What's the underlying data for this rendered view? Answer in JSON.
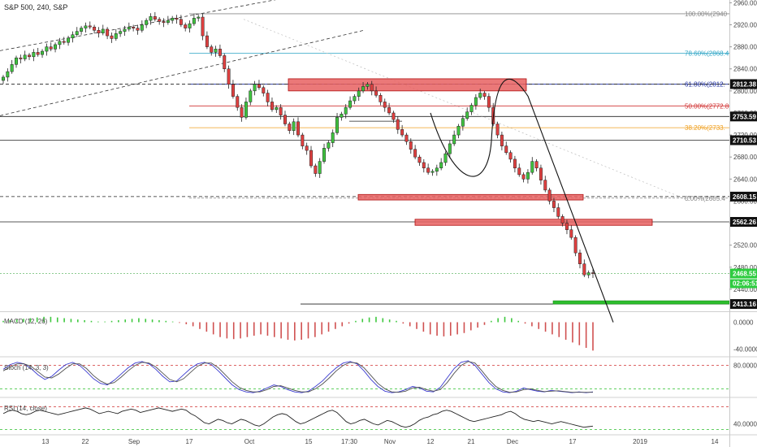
{
  "header": {
    "title": "S&P 500, 240, S&P"
  },
  "colors": {
    "up": "#3fc43f",
    "down": "#e04040",
    "zone_fill": "#e86060",
    "zone_stroke": "#b01010",
    "fib_100": "#8a8a8a",
    "fib_786": "#2aa3c4",
    "fib_618": "#2030a0",
    "fib_50": "#d03030",
    "fib_382": "#f0a020",
    "fib_0": "#8a8a8a",
    "macd_pos": "#3ec83e",
    "macd_neg": "#d05050",
    "stoch_k": "#3a3ad0",
    "stoch_d": "#505050",
    "band_red": "#d03030",
    "band_green": "#2cbf2c",
    "last_price_bg": "#2ecc40"
  },
  "chart_data": [
    {
      "type": "candlestick",
      "pane": "price",
      "ylim": [
        2400,
        2965
      ],
      "price_ticks": [
        2960,
        2920,
        2880,
        2840,
        2800,
        2760,
        2720,
        2680,
        2640,
        2600,
        2560,
        2520,
        2480,
        2440
      ],
      "price_tick_labels": [
        "2960.00",
        "2920.00",
        "2880.00",
        "2840.00",
        "2800.00",
        "2760.00",
        "2720.00",
        "2680.00",
        "2640.00",
        "2600.00",
        "2560.00",
        "2520.00",
        "2480.00",
        "2440.00"
      ],
      "date_labels": [
        "13",
        "22",
        "Sep",
        "17",
        "Oct",
        "15",
        "17:30",
        "Nov",
        "12",
        "21",
        "Dec",
        "17",
        "2019",
        "14"
      ],
      "fib_levels": [
        {
          "label": "100.00%(2940",
          "value": 2940.0,
          "color_key": "fib_100"
        },
        {
          "label": "78.60%(2868.4",
          "value": 2868.4,
          "color_key": "fib_786"
        },
        {
          "label": "61.80%(2812.",
          "value": 2812.4,
          "color_key": "fib_618"
        },
        {
          "label": "50.00%(2772.8",
          "value": 2772.8,
          "color_key": "fib_50"
        },
        {
          "label": "38.20%(2733.",
          "value": 2733.2,
          "color_key": "fib_382"
        },
        {
          "label": "0.00%(2605.4",
          "value": 2605.4,
          "color_key": "fib_0"
        }
      ],
      "horizontal_levels": [
        2812.38,
        2753.59,
        2710.53,
        2608.15,
        2562.26,
        2413.16
      ],
      "price_badges": [
        "2812.38",
        "2753.59",
        "2710.53",
        "2608.15",
        "2562.26",
        "2413.16"
      ],
      "last_price": {
        "value": 2468.55,
        "label": "2468.55",
        "countdown": "02:06:51"
      },
      "closes": [
        2825,
        2835,
        2848,
        2860,
        2858,
        2865,
        2862,
        2870,
        2866,
        2872,
        2880,
        2876,
        2884,
        2890,
        2888,
        2896,
        2902,
        2908,
        2914,
        2918,
        2916,
        2910,
        2905,
        2912,
        2900,
        2895,
        2904,
        2908,
        2912,
        2916,
        2914,
        2910,
        2920,
        2928,
        2935,
        2930,
        2926,
        2924,
        2928,
        2932,
        2930,
        2920,
        2914,
        2922,
        2932,
        2934,
        2900,
        2880,
        2870,
        2876,
        2864,
        2840,
        2812,
        2790,
        2770,
        2752,
        2780,
        2800,
        2812,
        2806,
        2796,
        2780,
        2766,
        2770,
        2756,
        2740,
        2728,
        2744,
        2720,
        2700,
        2692,
        2664,
        2650,
        2672,
        2696,
        2706,
        2724,
        2752,
        2758,
        2770,
        2782,
        2790,
        2800,
        2808,
        2812,
        2800,
        2792,
        2780,
        2770,
        2760,
        2748,
        2730,
        2720,
        2708,
        2694,
        2680,
        2670,
        2660,
        2652,
        2654,
        2660,
        2670,
        2686,
        2704,
        2720,
        2736,
        2750,
        2762,
        2774,
        2788,
        2796,
        2790,
        2770,
        2740,
        2720,
        2700,
        2688,
        2676,
        2660,
        2648,
        2640,
        2652,
        2672,
        2660,
        2638,
        2620,
        2600,
        2588,
        2572,
        2560,
        2548,
        2534,
        2506,
        2486,
        2466,
        2470,
        2468.55
      ],
      "zones": [
        {
          "from_index": 54,
          "to_index": 103,
          "low": 2800,
          "high": 2822
        },
        {
          "from_index": 66,
          "to_index": 128,
          "low": 2602,
          "high": 2612
        },
        {
          "from_index": 84,
          "to_index": 130,
          "low": 2556,
          "high": 2567
        }
      ]
    },
    {
      "type": "bar",
      "pane": "macd",
      "label": "MACD (12, 26)",
      "ylim": [
        -50,
        15
      ],
      "ticks": [
        0,
        -40
      ],
      "tick_labels": [
        "0.0000",
        "-40.0000"
      ],
      "values": [
        2,
        3,
        4,
        5,
        6,
        7,
        8,
        8,
        7,
        6,
        5,
        4,
        3,
        2,
        1,
        1,
        2,
        3,
        4,
        5,
        6,
        5,
        4,
        3,
        2,
        1,
        -1,
        -3,
        -6,
        -10,
        -14,
        -18,
        -22,
        -24,
        -25,
        -24,
        -22,
        -20,
        -18,
        -20,
        -22,
        -24,
        -26,
        -27,
        -26,
        -24,
        -22,
        -18,
        -14,
        -10,
        -6,
        -2,
        2,
        5,
        7,
        8,
        6,
        4,
        2,
        -2,
        -6,
        -10,
        -14,
        -18,
        -20,
        -21,
        -20,
        -18,
        -16,
        -12,
        -8,
        -4,
        2,
        6,
        8,
        6,
        2,
        -2,
        -6,
        -10,
        -14,
        -18,
        -22,
        -26,
        -30,
        -34,
        -38,
        -42
      ]
    },
    {
      "type": "line",
      "pane": "stoch",
      "label": "Stoch (14, 3, 3)",
      "ylim": [
        0,
        100
      ],
      "ticks": [
        80
      ],
      "tick_labels": [
        "80.0000"
      ],
      "series": [
        {
          "key": "k",
          "values": [
            70,
            82,
            88,
            84,
            72,
            56,
            44,
            52,
            68,
            82,
            88,
            80,
            64,
            46,
            34,
            30,
            42,
            58,
            74,
            86,
            90,
            84,
            70,
            52,
            38,
            40,
            56,
            72,
            84,
            88,
            82,
            66,
            48,
            30,
            18,
            12,
            10,
            14,
            22,
            30,
            26,
            18,
            12,
            10,
            14,
            26,
            40,
            58,
            74,
            86,
            90,
            84,
            66,
            44,
            26,
            14,
            10,
            12,
            18,
            26,
            22,
            14,
            12,
            24,
            48,
            72,
            88,
            92,
            80,
            58,
            36,
            20,
            12,
            10,
            14,
            22,
            18,
            14,
            12,
            16,
            14,
            12,
            10,
            12,
            10,
            12
          ]
        },
        {
          "key": "d",
          "values": [
            66,
            76,
            84,
            84,
            78,
            64,
            50,
            48,
            58,
            72,
            84,
            84,
            72,
            54,
            40,
            32,
            36,
            50,
            66,
            80,
            88,
            86,
            76,
            60,
            44,
            38,
            46,
            62,
            78,
            86,
            86,
            74,
            56,
            38,
            24,
            16,
            12,
            12,
            18,
            26,
            28,
            22,
            16,
            12,
            12,
            20,
            32,
            48,
            66,
            80,
            88,
            86,
            74,
            54,
            34,
            20,
            12,
            11,
            14,
            22,
            24,
            18,
            14,
            18,
            36,
            60,
            80,
            90,
            86,
            66,
            44,
            26,
            16,
            11,
            12,
            18,
            20,
            16,
            13,
            14,
            15,
            13,
            11,
            11,
            11,
            11
          ]
        }
      ]
    },
    {
      "type": "line",
      "pane": "rsi",
      "label": "RSI (14, close)",
      "ylim": [
        25,
        85
      ],
      "ticks": [
        40
      ],
      "tick_labels": [
        "40.0000"
      ],
      "values": [
        58,
        62,
        64,
        62,
        58,
        56,
        58,
        62,
        64,
        62,
        60,
        58,
        56,
        58,
        60,
        62,
        64,
        66,
        68,
        66,
        62,
        58,
        60,
        62,
        60,
        58,
        62,
        64,
        66,
        64,
        60,
        62,
        64,
        66,
        68,
        66,
        64,
        62,
        64,
        66,
        64,
        58,
        54,
        48,
        42,
        40,
        44,
        48,
        46,
        42,
        40,
        44,
        48,
        46,
        42,
        38,
        36,
        40,
        46,
        52,
        56,
        58,
        56,
        50,
        44,
        40,
        42,
        46,
        50,
        54,
        58,
        62,
        64,
        60,
        52,
        44,
        40,
        42,
        46,
        48,
        44,
        40,
        38,
        42,
        46,
        44,
        40,
        36,
        34,
        36,
        40,
        46,
        50,
        52,
        56,
        58,
        62,
        64,
        62,
        58,
        54,
        50,
        46,
        44,
        46,
        48,
        50,
        52,
        54,
        56,
        60,
        62,
        58,
        52,
        48,
        46,
        44,
        46,
        44,
        42,
        40,
        42,
        44,
        42,
        40,
        38,
        36,
        34,
        35,
        36
      ]
    }
  ]
}
